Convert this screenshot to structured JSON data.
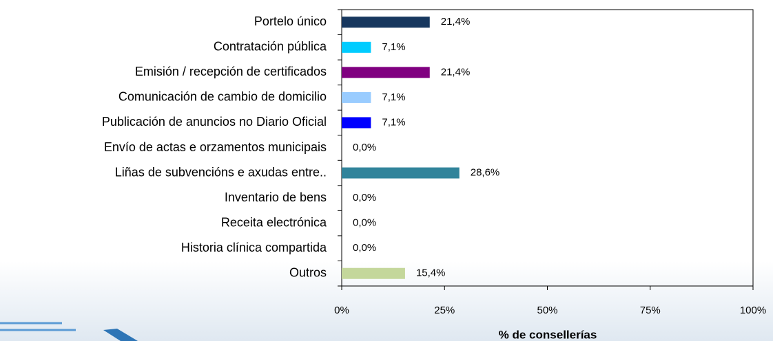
{
  "chart_data": {
    "type": "bar",
    "orientation": "horizontal",
    "categories": [
      "Portelo único",
      "Contratación pública",
      "Emisión / recepción de certificados",
      "Comunicación de cambio de domicilio",
      "Publicación de anuncios no Diario Oficial",
      "Envío de actas e orzamentos municipais",
      "Liñas de subvencións e axudas entre..",
      "Inventario de bens",
      "Receita electrónica",
      "Historia clínica compartida",
      "Outros"
    ],
    "values": [
      21.4,
      7.1,
      21.4,
      7.1,
      7.1,
      0,
      28.6,
      0,
      0,
      0,
      15.4
    ],
    "value_labels": [
      "21,4%",
      "7,1%",
      "21,4%",
      "7,1%",
      "7,1%",
      "0,0%",
      "28,6%",
      "0,0%",
      "0,0%",
      "0,0%",
      "15,4%"
    ],
    "colors": [
      "#17375e",
      "#00ccff",
      "#800080",
      "#99ccff",
      "#0000ff",
      "#808080",
      "#31849b",
      "#808080",
      "#808080",
      "#808080",
      "#c4d79b"
    ],
    "xlabel": "% de consellerías",
    "xlim": [
      0,
      100
    ],
    "xticks": [
      {
        "value": 0,
        "label": "0%"
      },
      {
        "value": 25,
        "label": "25%"
      },
      {
        "value": 50,
        "label": "50%"
      },
      {
        "value": 75,
        "label": "75%"
      },
      {
        "value": 100,
        "label": "100%"
      }
    ]
  }
}
